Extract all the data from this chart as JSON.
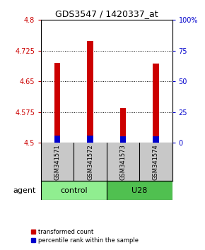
{
  "title": "GDS3547 / 1420337_at",
  "samples": [
    "GSM341571",
    "GSM341572",
    "GSM341573",
    "GSM341574"
  ],
  "groups": [
    {
      "name": "control",
      "samples": [
        0,
        1
      ]
    },
    {
      "name": "U28",
      "samples": [
        2,
        3
      ]
    }
  ],
  "red_bar_tops": [
    4.695,
    4.748,
    4.585,
    4.693
  ],
  "blue_bar_tops": [
    4.518,
    4.518,
    4.516,
    4.516
  ],
  "bar_base": 4.5,
  "ylim_left": [
    4.5,
    4.8
  ],
  "ylim_right": [
    0,
    100
  ],
  "yticks_left": [
    4.5,
    4.575,
    4.65,
    4.725,
    4.8
  ],
  "ytick_labels_left": [
    "4.5",
    "4.575",
    "4.65",
    "4.725",
    "4.8"
  ],
  "yticks_right": [
    0,
    25,
    50,
    75,
    100
  ],
  "ytick_labels_right": [
    "0",
    "25",
    "50",
    "75",
    "100%"
  ],
  "grid_lines": [
    4.575,
    4.65,
    4.725
  ],
  "bar_width": 0.18,
  "red_color": "#CC0000",
  "blue_color": "#0000CC",
  "left_axis_color": "#CC0000",
  "right_axis_color": "#0000CC",
  "sample_box_color": "#C8C8C8",
  "control_color": "#90EE90",
  "u28_color": "#50C050",
  "legend_red_label": "transformed count",
  "legend_blue_label": "percentile rank within the sample",
  "agent_label": "agent",
  "background_color": "#FFFFFF",
  "title_fontsize": 9,
  "tick_fontsize": 7,
  "sample_fontsize": 6,
  "group_fontsize": 8,
  "legend_fontsize": 6
}
